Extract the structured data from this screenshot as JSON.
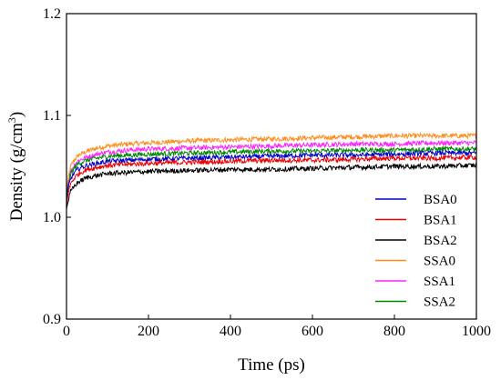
{
  "chart_data": {
    "type": "line",
    "title": "",
    "xlabel": "Time (ps)",
    "ylabel_parts": {
      "main": "Density (g/cm",
      "sup": "3",
      "close": ")"
    },
    "xlim": [
      0,
      1000
    ],
    "ylim": [
      0.9,
      1.2
    ],
    "xticks": [
      0,
      200,
      400,
      600,
      800,
      1000
    ],
    "yticks": [
      0.9,
      1.0,
      1.1,
      1.2
    ],
    "ytick_labels": [
      "0.9",
      "1.0",
      "1.1",
      "1.2"
    ],
    "grid": false,
    "legend_position": "bottom-right",
    "x": [
      0,
      5,
      10,
      20,
      30,
      50,
      75,
      100,
      150,
      200,
      300,
      400,
      500,
      600,
      700,
      800,
      900,
      1000
    ],
    "series": [
      {
        "name": "BSA0",
        "color": "#0000cc",
        "values": [
          1.015,
          1.03,
          1.038,
          1.044,
          1.048,
          1.051,
          1.053,
          1.055,
          1.056,
          1.057,
          1.058,
          1.059,
          1.06,
          1.061,
          1.061,
          1.062,
          1.063,
          1.063
        ]
      },
      {
        "name": "BSA1",
        "color": "#ee0000",
        "values": [
          1.012,
          1.025,
          1.033,
          1.039,
          1.043,
          1.047,
          1.049,
          1.051,
          1.052,
          1.053,
          1.054,
          1.055,
          1.056,
          1.056,
          1.057,
          1.058,
          1.058,
          1.059
        ]
      },
      {
        "name": "BSA2",
        "color": "#000000",
        "values": [
          1.008,
          1.018,
          1.025,
          1.031,
          1.035,
          1.039,
          1.041,
          1.043,
          1.044,
          1.045,
          1.046,
          1.047,
          1.047,
          1.048,
          1.049,
          1.05,
          1.05,
          1.051
        ]
      },
      {
        "name": "SSA0",
        "color": "#ff8c1a",
        "values": [
          1.025,
          1.04,
          1.05,
          1.057,
          1.061,
          1.065,
          1.068,
          1.07,
          1.072,
          1.073,
          1.075,
          1.076,
          1.077,
          1.078,
          1.079,
          1.08,
          1.08,
          1.08
        ]
      },
      {
        "name": "SSA1",
        "color": "#ff22ff",
        "values": [
          1.022,
          1.036,
          1.045,
          1.052,
          1.056,
          1.059,
          1.062,
          1.064,
          1.066,
          1.067,
          1.068,
          1.069,
          1.07,
          1.071,
          1.072,
          1.072,
          1.073,
          1.073
        ]
      },
      {
        "name": "SSA2",
        "color": "#008800",
        "values": [
          1.02,
          1.034,
          1.042,
          1.049,
          1.053,
          1.056,
          1.058,
          1.06,
          1.061,
          1.062,
          1.063,
          1.064,
          1.065,
          1.065,
          1.066,
          1.066,
          1.067,
          1.067
        ]
      }
    ]
  }
}
